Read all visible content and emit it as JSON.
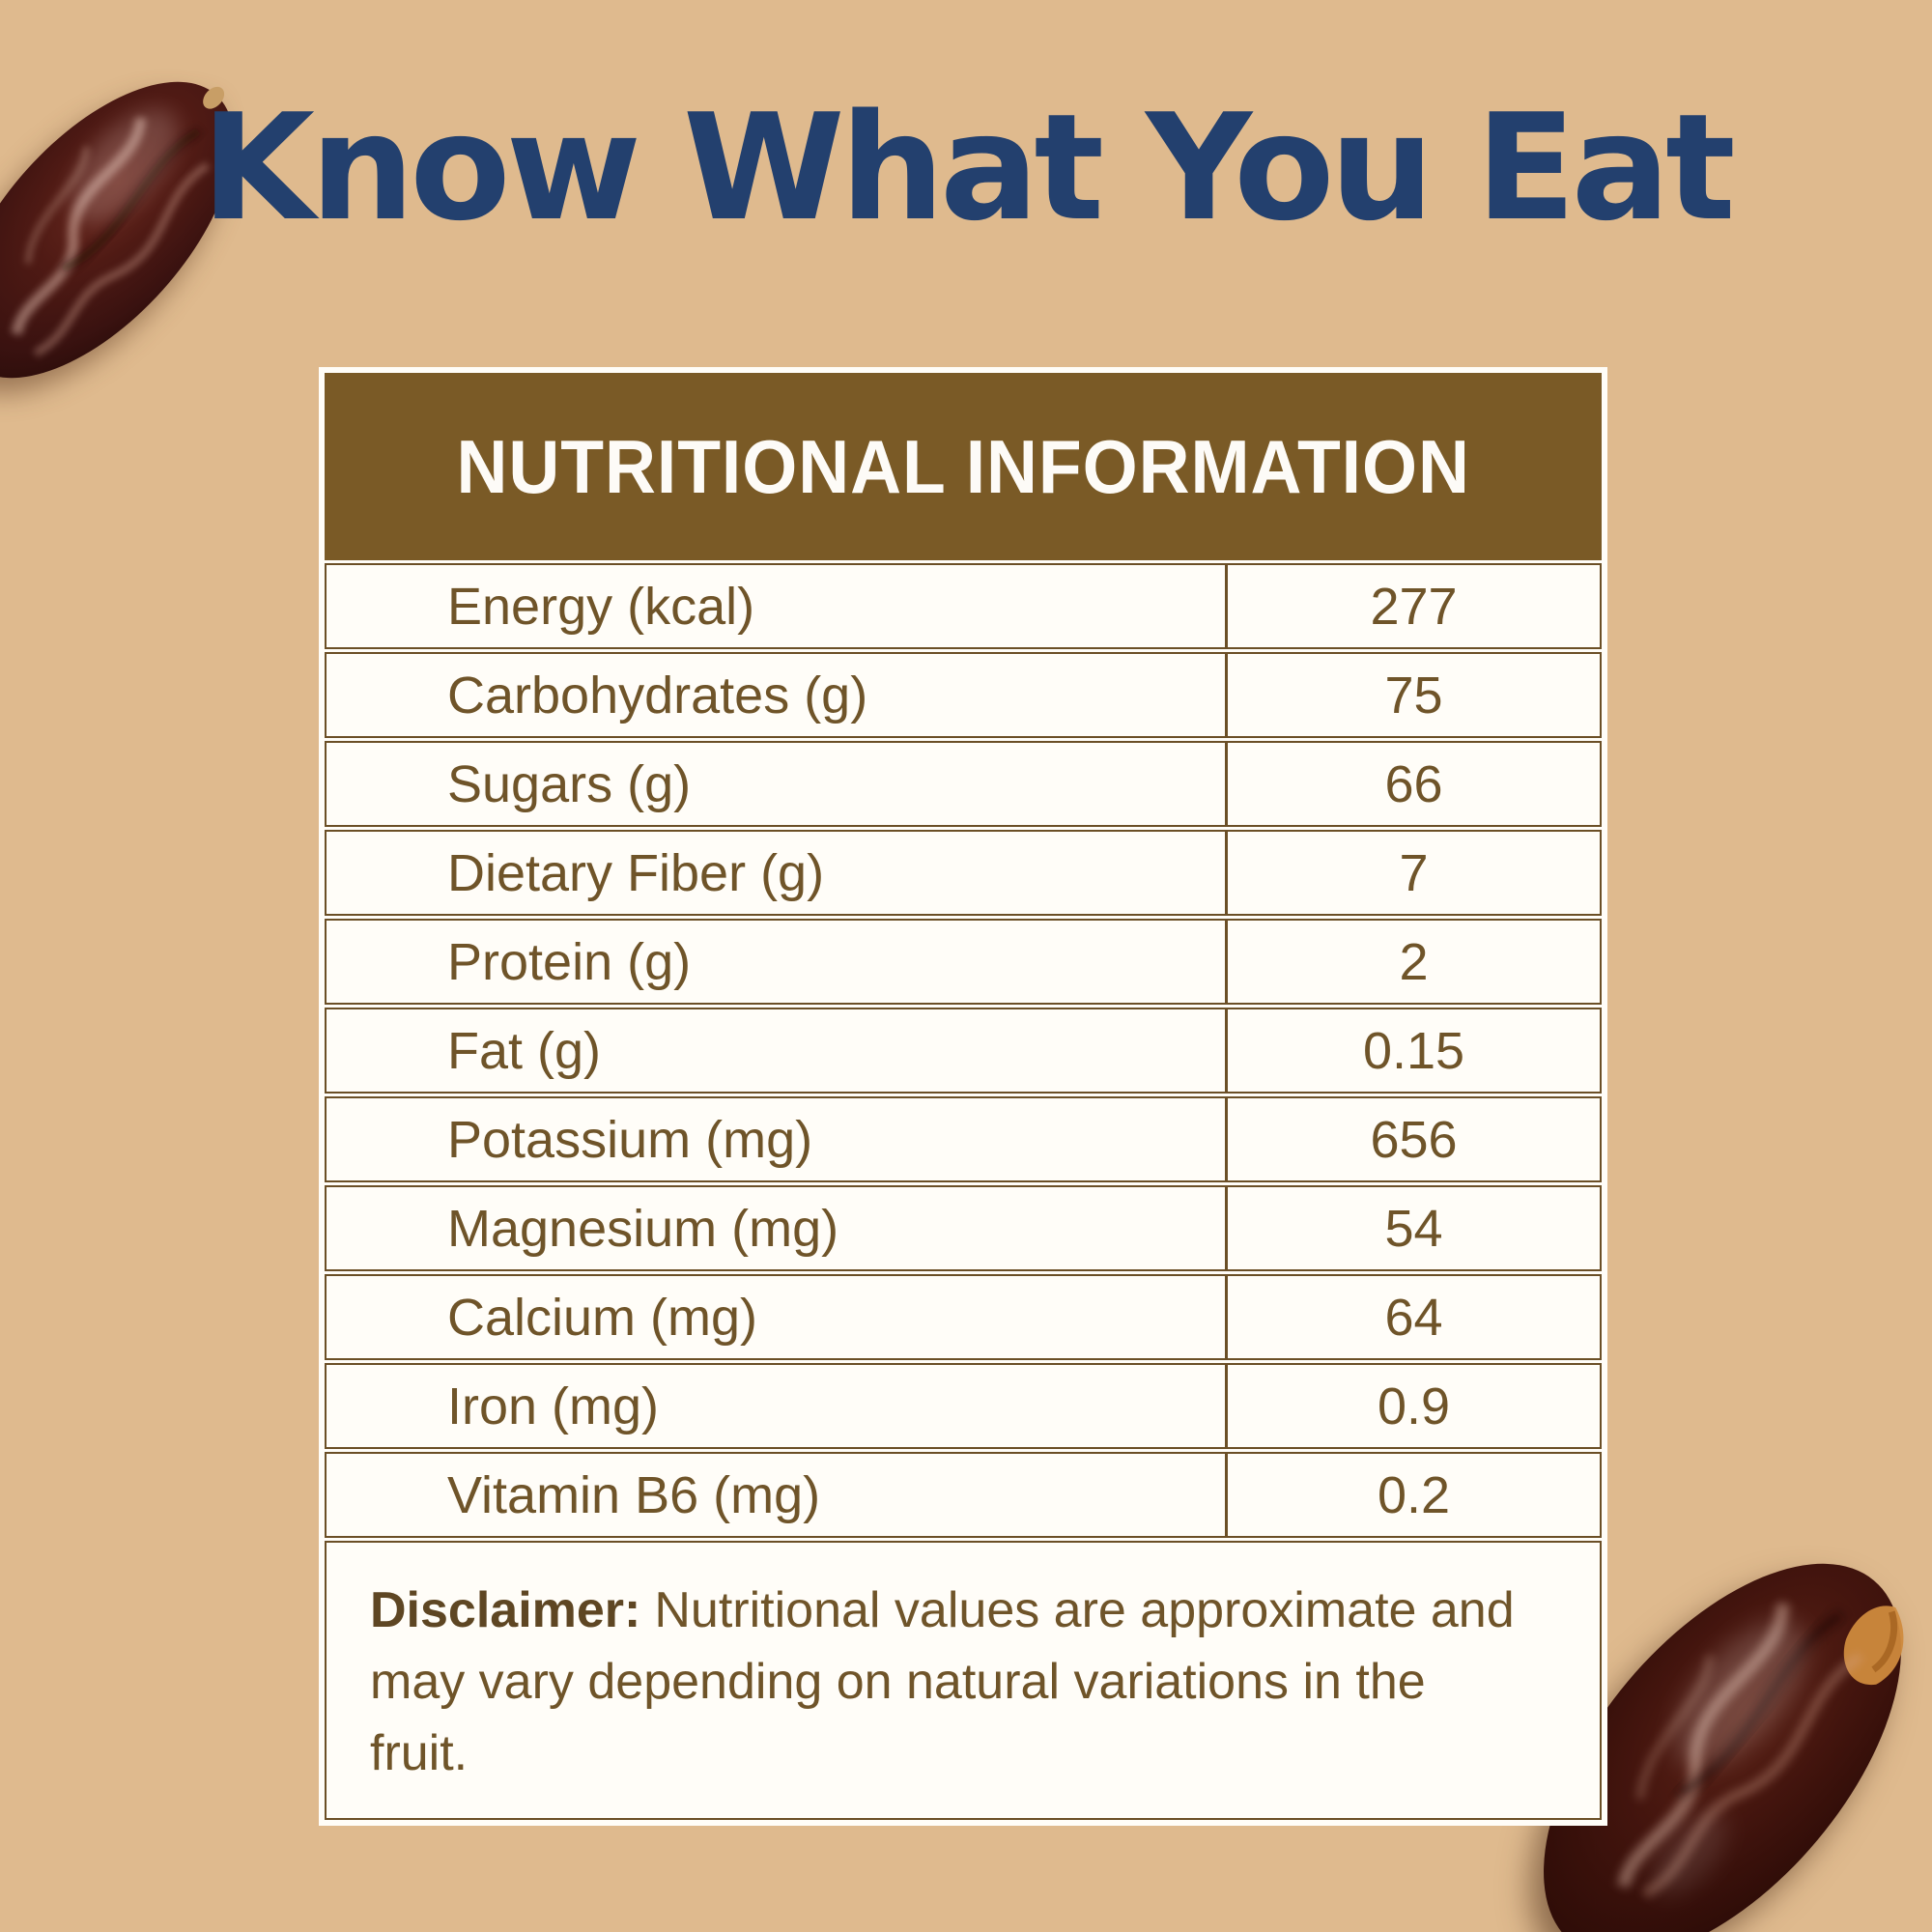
{
  "title": "Know What You Eat",
  "nutrition_table": {
    "header": "NUTRITIONAL INFORMATION",
    "rows": [
      {
        "label": "Energy (kcal)",
        "value": "277"
      },
      {
        "label": "Carbohydrates (g)",
        "value": "75"
      },
      {
        "label": "Sugars (g)",
        "value": "66"
      },
      {
        "label": "Dietary Fiber (g)",
        "value": "7"
      },
      {
        "label": "Protein (g)",
        "value": "2"
      },
      {
        "label": "Fat (g)",
        "value": "0.15"
      },
      {
        "label": "Potassium (mg)",
        "value": "656"
      },
      {
        "label": "Magnesium (mg)",
        "value": "54"
      },
      {
        "label": "Calcium (mg)",
        "value": "64"
      },
      {
        "label": "Iron (mg)",
        "value": "0.9"
      },
      {
        "label": "Vitamin B6 (mg)",
        "value": "0.2"
      }
    ],
    "disclaimer": {
      "label": "Disclaimer:",
      "text": "Nutritional values are approximate and may vary depending on natural variations in the fruit."
    }
  },
  "images": {
    "top_left": "date-fruit",
    "bottom_right": "date-fruit-with-stem-remnant"
  },
  "colors": {
    "background": "#dfba8e",
    "title_text": "#23406e",
    "header_bg": "#7a5a26",
    "header_text": "#fdfbf7",
    "table_bg": "#fffdf8",
    "cell_text": "#6f5429",
    "border": "#6b4f26",
    "disclaimer_bold": "#5e4623",
    "date_body": "#401610",
    "date_stem_accent": "#cf8a3d"
  }
}
